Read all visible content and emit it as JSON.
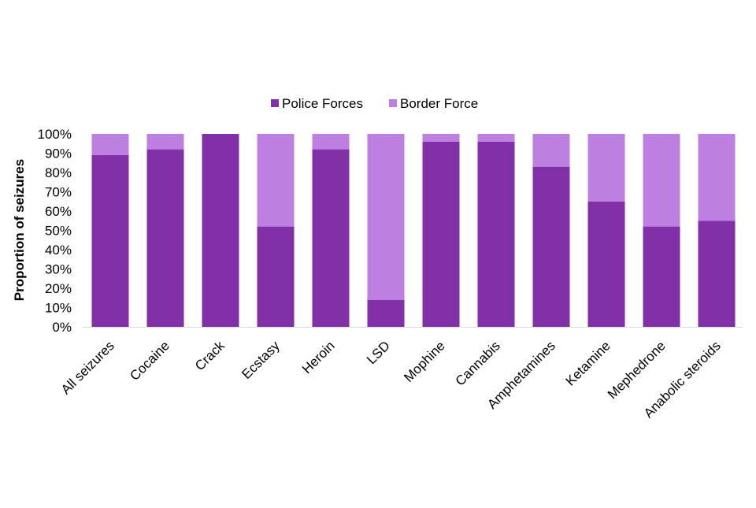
{
  "chart_data": {
    "type": "bar",
    "stacked": true,
    "percent": true,
    "title": "",
    "xlabel": "",
    "ylabel": "Proportion of seizures",
    "ylim": [
      0,
      100
    ],
    "yticks": [
      0,
      10,
      20,
      30,
      40,
      50,
      60,
      70,
      80,
      90,
      100
    ],
    "ytick_labels": [
      "0%",
      "10%",
      "20%",
      "30%",
      "40%",
      "50%",
      "60%",
      "70%",
      "80%",
      "90%",
      "100%"
    ],
    "grid": false,
    "legend_position": "top-center",
    "categories": [
      "All seizures",
      "Cocaine",
      "Crack",
      "Ecstasy",
      "Heroin",
      "LSD",
      "Mophine",
      "Cannabis",
      "Amphetamines",
      "Ketamine",
      "Mephedrone",
      "Anabolic steroids"
    ],
    "series": [
      {
        "name": "Police Forces",
        "color": "#8230a8",
        "values": [
          89,
          92,
          100,
          52,
          92,
          14,
          96,
          96,
          83,
          65,
          52,
          55
        ]
      },
      {
        "name": "Border Force",
        "color": "#bd7fe0",
        "values": [
          11,
          8,
          0,
          48,
          8,
          86,
          4,
          4,
          17,
          35,
          48,
          45
        ]
      }
    ]
  }
}
